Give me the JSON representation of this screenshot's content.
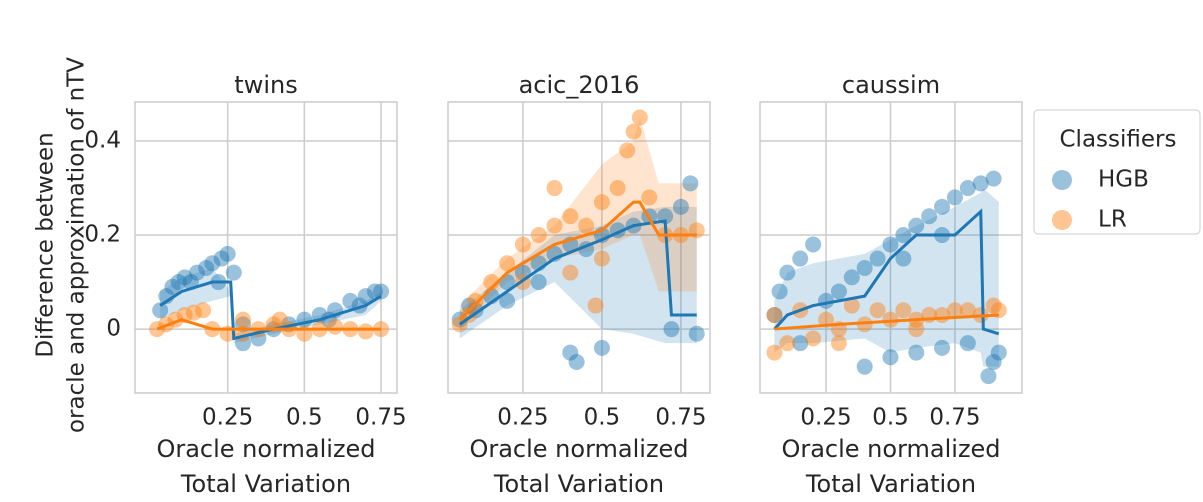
{
  "figure": {
    "y_label": [
      "Difference between",
      "oracle and approximation of nTV"
    ],
    "legend_title": "Classifiers"
  },
  "chart_data": [
    {
      "type": "scatter",
      "title": "twins",
      "x_label": [
        "Oracle normalized",
        "Total Variation"
      ],
      "xlim": [
        -0.052,
        0.802
      ],
      "ylim": [
        -0.136,
        0.483
      ],
      "xticks": [
        0.25,
        0.5,
        0.75
      ],
      "yticks": [
        0.0,
        0.2,
        0.4
      ],
      "grid": true,
      "series": [
        {
          "name": "HGB",
          "color": "#1f77b4",
          "x": [
            0.03,
            0.05,
            0.07,
            0.09,
            0.11,
            0.13,
            0.15,
            0.18,
            0.2,
            0.23,
            0.25,
            0.27,
            0.22,
            0.3,
            0.35,
            0.4,
            0.45,
            0.5,
            0.55,
            0.6,
            0.65,
            0.7,
            0.73,
            0.75,
            0.68,
            0.58,
            0.3
          ],
          "values": [
            0.04,
            0.07,
            0.09,
            0.1,
            0.11,
            0.1,
            0.12,
            0.13,
            0.14,
            0.15,
            0.16,
            0.12,
            0.1,
            -0.03,
            -0.02,
            0.0,
            0.01,
            0.02,
            0.03,
            0.04,
            0.06,
            0.07,
            0.08,
            0.08,
            0.05,
            0.02,
            0.01
          ],
          "trend_x": [
            0.03,
            0.1,
            0.2,
            0.26,
            0.27,
            0.4,
            0.55,
            0.7,
            0.75
          ],
          "trend": [
            0.05,
            0.08,
            0.1,
            0.1,
            -0.02,
            0.0,
            0.02,
            0.05,
            0.07
          ],
          "band_low": [
            0.02,
            0.04,
            0.06,
            0.07,
            -0.03,
            -0.01,
            0.01,
            0.03,
            0.06
          ],
          "band_high": [
            0.08,
            0.11,
            0.13,
            0.08,
            -0.01,
            0.01,
            0.03,
            0.06,
            0.08
          ]
        },
        {
          "name": "LR",
          "color": "#ff7f0e",
          "x": [
            0.02,
            0.05,
            0.08,
            0.11,
            0.14,
            0.17,
            0.2,
            0.25,
            0.3,
            0.35,
            0.4,
            0.45,
            0.5,
            0.55,
            0.6,
            0.65,
            0.7,
            0.75,
            0.3,
            0.42
          ],
          "values": [
            0.0,
            0.01,
            0.02,
            0.03,
            0.035,
            0.04,
            0.0,
            -0.01,
            -0.01,
            0.0,
            0.01,
            0.0,
            -0.01,
            0.0,
            0.005,
            0.0,
            -0.005,
            0.0,
            0.02,
            0.02
          ],
          "trend_x": [
            0.02,
            0.1,
            0.2,
            0.4,
            0.6,
            0.75
          ],
          "trend": [
            0.0,
            0.02,
            0.0,
            0.0,
            0.0,
            0.0
          ]
        }
      ]
    },
    {
      "type": "scatter",
      "title": "acic_2016",
      "x_label": [
        "Oracle normalized",
        "Total Variation"
      ],
      "xlim": [
        0.013,
        0.842
      ],
      "ylim": [
        -0.136,
        0.483
      ],
      "xticks": [
        0.25,
        0.5,
        0.75
      ],
      "yticks": [
        0.0,
        0.2,
        0.4
      ],
      "grid": true,
      "series": [
        {
          "name": "HGB",
          "color": "#1f77b4",
          "x": [
            0.05,
            0.08,
            0.1,
            0.15,
            0.2,
            0.25,
            0.3,
            0.35,
            0.4,
            0.45,
            0.5,
            0.55,
            0.6,
            0.65,
            0.7,
            0.75,
            0.78,
            0.8,
            0.4,
            0.42,
            0.5,
            0.72,
            0.3,
            0.2
          ],
          "values": [
            0.02,
            0.05,
            0.04,
            0.07,
            0.1,
            0.12,
            0.14,
            0.16,
            0.18,
            0.17,
            0.2,
            0.21,
            0.22,
            0.24,
            0.24,
            0.26,
            0.31,
            -0.01,
            -0.05,
            -0.07,
            -0.04,
            0.0,
            0.1,
            0.06
          ],
          "trend_x": [
            0.05,
            0.2,
            0.35,
            0.5,
            0.6,
            0.7,
            0.72,
            0.8
          ],
          "trend": [
            0.01,
            0.08,
            0.15,
            0.19,
            0.22,
            0.23,
            0.03,
            0.03
          ],
          "band_low": [
            -0.02,
            0.05,
            0.1,
            0.0,
            -0.01,
            -0.03,
            -0.03,
            -0.03
          ],
          "band_high": [
            0.04,
            0.12,
            0.2,
            0.22,
            0.25,
            0.26,
            0.26,
            0.26
          ]
        },
        {
          "name": "LR",
          "color": "#ff7f0e",
          "x": [
            0.05,
            0.08,
            0.1,
            0.15,
            0.2,
            0.25,
            0.3,
            0.35,
            0.4,
            0.45,
            0.5,
            0.55,
            0.6,
            0.62,
            0.58,
            0.65,
            0.7,
            0.75,
            0.8,
            0.35,
            0.4,
            0.25,
            0.5,
            0.48
          ],
          "values": [
            0.01,
            0.03,
            0.06,
            0.1,
            0.14,
            0.18,
            0.2,
            0.22,
            0.24,
            0.22,
            0.27,
            0.3,
            0.42,
            0.45,
            0.38,
            0.28,
            0.2,
            0.2,
            0.21,
            0.3,
            0.12,
            0.1,
            0.15,
            0.05
          ],
          "trend_x": [
            0.05,
            0.2,
            0.35,
            0.5,
            0.6,
            0.62,
            0.68,
            0.8
          ],
          "trend": [
            0.02,
            0.12,
            0.18,
            0.21,
            0.27,
            0.27,
            0.2,
            0.2
          ],
          "band_low": [
            0.0,
            0.1,
            0.15,
            0.17,
            0.2,
            0.2,
            0.08,
            0.08
          ],
          "band_high": [
            0.05,
            0.15,
            0.22,
            0.35,
            0.4,
            0.45,
            0.31,
            0.31
          ]
        }
      ]
    },
    {
      "type": "scatter",
      "title": "caussim",
      "x_label": [
        "Oracle normalized",
        "Total Variation"
      ],
      "xlim": [
        -0.006,
        1.01
      ],
      "ylim": [
        -0.136,
        0.483
      ],
      "xticks": [
        0.25,
        0.5,
        0.75
      ],
      "yticks": [
        0.0,
        0.2,
        0.4
      ],
      "grid": true,
      "series": [
        {
          "name": "HGB",
          "color": "#1f77b4",
          "x": [
            0.05,
            0.07,
            0.1,
            0.15,
            0.2,
            0.25,
            0.3,
            0.35,
            0.4,
            0.45,
            0.5,
            0.55,
            0.6,
            0.65,
            0.7,
            0.75,
            0.8,
            0.85,
            0.9,
            0.55,
            0.7,
            0.4,
            0.5,
            0.6,
            0.7,
            0.8,
            0.9,
            0.88,
            0.92,
            0.15
          ],
          "values": [
            0.03,
            0.08,
            0.12,
            0.15,
            0.18,
            0.06,
            0.08,
            0.11,
            0.13,
            0.15,
            0.18,
            0.2,
            0.22,
            0.24,
            0.26,
            0.28,
            0.3,
            0.31,
            0.32,
            0.15,
            0.2,
            -0.08,
            -0.06,
            -0.05,
            -0.04,
            -0.03,
            -0.07,
            -0.1,
            -0.05,
            -0.03
          ],
          "trend_x": [
            0.05,
            0.1,
            0.2,
            0.4,
            0.5,
            0.6,
            0.75,
            0.85,
            0.86,
            0.92
          ],
          "trend": [
            0.0,
            0.03,
            0.05,
            0.07,
            0.15,
            0.2,
            0.2,
            0.25,
            0.0,
            -0.01
          ],
          "band_low": [
            -0.05,
            -0.03,
            -0.03,
            -0.02,
            -0.05,
            -0.04,
            -0.03,
            -0.05,
            -0.08,
            -0.08
          ],
          "band_high": [
            0.06,
            0.12,
            0.14,
            0.16,
            0.19,
            0.22,
            0.26,
            0.29,
            0.3,
            0.27
          ]
        },
        {
          "name": "LR",
          "color": "#ff7f0e",
          "x": [
            0.05,
            0.1,
            0.2,
            0.3,
            0.4,
            0.5,
            0.6,
            0.7,
            0.8,
            0.9,
            0.05,
            0.15,
            0.25,
            0.35,
            0.45,
            0.55,
            0.65,
            0.75,
            0.85,
            0.92,
            0.3,
            0.6
          ],
          "values": [
            -0.05,
            -0.03,
            -0.02,
            0.0,
            0.01,
            0.02,
            0.02,
            0.03,
            0.04,
            0.05,
            0.03,
            0.04,
            0.02,
            0.05,
            0.04,
            0.04,
            0.03,
            0.04,
            0.03,
            0.04,
            -0.03,
            0.0
          ],
          "trend_x": [
            0.05,
            0.3,
            0.6,
            0.92
          ],
          "trend": [
            0.0,
            0.01,
            0.02,
            0.03
          ]
        }
      ]
    }
  ]
}
